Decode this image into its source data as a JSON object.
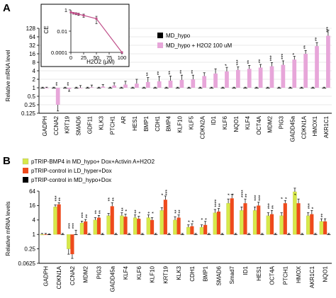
{
  "panels": [
    {
      "letter": "A",
      "ylabel": "Relative mRNA level",
      "scale": "log2",
      "ylim": [
        0.125,
        128
      ],
      "yticks": [
        "128",
        "64",
        "32",
        "16",
        "8",
        "4",
        "2",
        "1",
        "0.5",
        "0.25",
        "0.125"
      ],
      "ytick_values": [
        128,
        64,
        32,
        16,
        8,
        4,
        2,
        1,
        0.5,
        0.25,
        0.125
      ],
      "gridlines": true,
      "colors": {
        "MD_hypo": "#000000",
        "MD_hypo + H2O2 100 uM": "#e7a6d9"
      },
      "legend": {
        "placement": "right",
        "entries": [
          "MD_hypo",
          "MD_hypo + H2O2 100 uM"
        ]
      }
    },
    {
      "letter": "B",
      "ylabel": "Relative mRNA levels",
      "scale": "log2",
      "ylim": [
        0.0625,
        64
      ],
      "yticks": [
        "64",
        "16",
        "4",
        "1",
        "0.25",
        "0.0625"
      ],
      "ytick_values": [
        64,
        16,
        4,
        1,
        0.25,
        0.0625
      ],
      "gridlines": false,
      "colors": {
        "pTRIP-BMP4 in MD_hypo+ Dox+Activin A+H2O2": "#d7e84a",
        "pTRIP-control in LD_hyper+Dox": "#ee4a1c",
        "pTRIP-control in MD_hypo+Dox": "#000000"
      },
      "legend": {
        "placement": "top-left",
        "entries": [
          "pTRIP-BMP4 in MD_hypo+ Dox+Activin A+H2O2",
          "pTRIP-control in LD_hyper+Dox",
          "pTRIP-control in MD_hypo+Dox"
        ]
      }
    }
  ],
  "inset": {
    "ylabel": "CE",
    "xlabel": "H2O2 (μM)",
    "yticks": [
      "1",
      "0.01",
      "0.0001"
    ],
    "ytick_values": [
      1,
      0.01,
      0.0001
    ],
    "xticks": [
      "0",
      "25",
      "50",
      "75",
      "100"
    ],
    "xtick_values": [
      0,
      25,
      50,
      75,
      100
    ],
    "color": "#c0508a"
  },
  "chart_data": [
    {
      "type": "bar",
      "title": "",
      "xlabel": "",
      "ylabel": "Relative mRNA level",
      "ylim": [
        0.125,
        128
      ],
      "categories": [
        "GADPH",
        "CCNA2",
        "KRT19",
        "SMAD6",
        "GDF11",
        "KLK3",
        "PTCH1",
        "AR",
        "HES1",
        "BMP1",
        "CDH1",
        "BMP4",
        "KLF10",
        "KLF5",
        "CDKN2A",
        "ID1",
        "KLF6",
        "NQO1",
        "KLF4",
        "OCT4A",
        "MDM2",
        "PIG3",
        "GADD45a",
        "CDKN1A",
        "HMOX1",
        "AKR1C1"
      ],
      "series": [
        {
          "name": "MD_hypo",
          "values": [
            1,
            1,
            1,
            1,
            1,
            1,
            1,
            1,
            1,
            1,
            1,
            1,
            1,
            1,
            1,
            1,
            1,
            1,
            1,
            1,
            1,
            1,
            1,
            1,
            1,
            1
          ],
          "errors": [
            0.05,
            0.05,
            0.05,
            0.05,
            0.05,
            0.05,
            0.05,
            0.05,
            0.05,
            0.05,
            0.05,
            0.05,
            0.05,
            0.05,
            0.05,
            0.05,
            0.05,
            0.05,
            0.05,
            0.05,
            0.05,
            0.05,
            0.05,
            0.05,
            0.05,
            0.05
          ]
        },
        {
          "name": "MD_hypo + H2O2 100 uM",
          "values": [
            1,
            0.25,
            0.9,
            1.0,
            1.05,
            1.1,
            1.2,
            1.3,
            1.4,
            1.6,
            1.7,
            1.8,
            1.9,
            2.0,
            2.6,
            3.2,
            3.8,
            4.3,
            4.7,
            5.2,
            5.8,
            6.5,
            10,
            16,
            30,
            70
          ],
          "errors": [
            0.05,
            0.1,
            0.15,
            0.2,
            0.2,
            0.2,
            0.3,
            0.4,
            0.6,
            0.7,
            0.8,
            0.8,
            0.9,
            0.8,
            0.8,
            1.5,
            1.5,
            1.2,
            1.5,
            1.5,
            2.0,
            2.5,
            3.0,
            5.0,
            10,
            40
          ]
        }
      ],
      "significance": [
        "",
        "**",
        "**",
        "",
        "",
        "",
        "",
        "",
        "",
        "**",
        "**",
        "**",
        "**",
        "**",
        "",
        "",
        "*",
        "***",
        "**",
        "**",
        "***",
        "***",
        "*",
        "**",
        "**",
        "***"
      ]
    },
    {
      "type": "bar",
      "title": "",
      "xlabel": "",
      "ylabel": "Relative mRNA levels",
      "ylim": [
        0.0625,
        64
      ],
      "categories": [
        "GADPH",
        "CDKN1A",
        "CCNA2",
        "MDM2",
        "PIG3",
        "GADD45a",
        "KLF4",
        "KLF6",
        "KLF10",
        "KRT19",
        "KLK3",
        "CDH1",
        "BMP1",
        "SMAD6",
        "Smad7",
        "ID1",
        "HES1",
        "OCT4A",
        "PTCH1",
        "HMOX",
        "AKR1C1",
        "NQO1"
      ],
      "series": [
        {
          "name": "pTRIP-BMP4 in MD_hypo+ Dox+Activin A+H2O2",
          "values": [
            1,
            14,
            0.25,
            3,
            4,
            6,
            6,
            5,
            5,
            10,
            4,
            2,
            2,
            8,
            20,
            10,
            10,
            6,
            6,
            60,
            6,
            3.5
          ],
          "errors": [
            0.1,
            3,
            0.1,
            0.6,
            1,
            1.5,
            2,
            1.5,
            1.5,
            3,
            1.5,
            0.5,
            0.5,
            3,
            10,
            4,
            4,
            2,
            2,
            25,
            2,
            1
          ]
        },
        {
          "name": "pTRIP-control in LD_hyper+Dox",
          "values": [
            1,
            18,
            0.15,
            3.5,
            5,
            15,
            5.5,
            4.5,
            4,
            28,
            5,
            2.2,
            2.5,
            9,
            32,
            20,
            16,
            7,
            20,
            20,
            7,
            3.5
          ],
          "errors": [
            0.1,
            3,
            0.05,
            0.7,
            1.2,
            6,
            1.5,
            1.2,
            1,
            12,
            1.5,
            0.6,
            1,
            3,
            15,
            10,
            6,
            3,
            6,
            10,
            3,
            1
          ]
        },
        {
          "name": "pTRIP-control in MD_hypo+Dox",
          "values": [
            1,
            1,
            1,
            1,
            1,
            1,
            1,
            1,
            1,
            1,
            1,
            1,
            1,
            1,
            1,
            1,
            1,
            1,
            1,
            1,
            1,
            1
          ],
          "errors": [
            0.05,
            0.1,
            0.5,
            0.1,
            0.1,
            0.1,
            0.1,
            0.1,
            0.1,
            0.1,
            0.1,
            0.1,
            0.1,
            0.1,
            0.1,
            0.1,
            0.1,
            0.1,
            0.1,
            0.1,
            0.1,
            0.1
          ]
        }
      ],
      "significance": [
        [
          "",
          "***",
          "***",
          "***",
          "**",
          "**",
          "**",
          "**",
          "*",
          "*",
          "**",
          "*",
          "*",
          "****",
          "*",
          "****",
          "***",
          "***",
          "*",
          "*",
          "***",
          "**"
        ],
        [
          "",
          "**",
          "***",
          "**",
          "**",
          "**",
          "*",
          "*",
          "*",
          "***",
          "**",
          "*",
          "*",
          "**",
          "*",
          "**",
          "***",
          "**",
          "*",
          "",
          "*",
          ""
        ]
      ]
    },
    {
      "type": "line",
      "title": "",
      "xlabel": "H2O2 (μM)",
      "ylabel": "CE",
      "x": [
        0,
        5,
        10,
        15,
        25,
        50,
        100
      ],
      "series": [
        {
          "values": [
            0.6,
            0.5,
            0.45,
            0.4,
            0.3,
            0.15,
            0.0001
          ],
          "errors": [
            0.1,
            0.1,
            0.1,
            0.1,
            0.1,
            0.1,
            2e-05
          ]
        }
      ]
    }
  ]
}
